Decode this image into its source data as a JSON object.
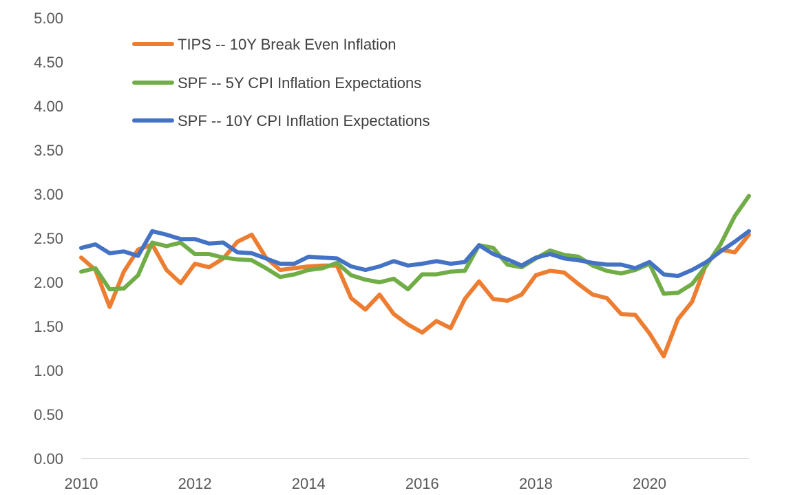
{
  "chart_data": {
    "type": "line",
    "title": "",
    "xlabel": "",
    "ylabel": "",
    "xlim": [
      2010,
      2021.75
    ],
    "ylim": [
      0,
      5
    ],
    "grid": false,
    "legend_position": "top-left",
    "y_ticks": [
      "0.00",
      "0.50",
      "1.00",
      "1.50",
      "2.00",
      "2.50",
      "3.00",
      "3.50",
      "4.00",
      "4.50",
      "5.00"
    ],
    "x_ticks": [
      "2010",
      "2012",
      "2014",
      "2016",
      "2018",
      "2020"
    ],
    "x": [
      2010.0,
      2010.25,
      2010.5,
      2010.75,
      2011.0,
      2011.25,
      2011.5,
      2011.75,
      2012.0,
      2012.25,
      2012.5,
      2012.75,
      2013.0,
      2013.25,
      2013.5,
      2013.75,
      2014.0,
      2014.25,
      2014.5,
      2014.75,
      2015.0,
      2015.25,
      2015.5,
      2015.75,
      2016.0,
      2016.25,
      2016.5,
      2016.75,
      2017.0,
      2017.25,
      2017.5,
      2017.75,
      2018.0,
      2018.25,
      2018.5,
      2018.75,
      2019.0,
      2019.25,
      2019.5,
      2019.75,
      2020.0,
      2020.25,
      2020.5,
      2020.75,
      2021.0,
      2021.25,
      2021.5,
      2021.75
    ],
    "series": [
      {
        "name": "TIPS -- 10Y Break Even Inflation",
        "color": "#ED7D31",
        "values": [
          2.28,
          2.14,
          1.72,
          2.12,
          2.37,
          2.43,
          2.14,
          1.99,
          2.21,
          2.17,
          2.27,
          2.46,
          2.54,
          2.28,
          2.14,
          2.16,
          2.18,
          2.19,
          2.19,
          1.82,
          1.69,
          1.86,
          1.64,
          1.52,
          1.43,
          1.56,
          1.48,
          1.81,
          2.01,
          1.81,
          1.79,
          1.86,
          2.08,
          2.13,
          2.11,
          1.98,
          1.86,
          1.82,
          1.64,
          1.63,
          1.42,
          1.16,
          1.58,
          1.78,
          2.21,
          2.37,
          2.34,
          2.54
        ]
      },
      {
        "name": "SPF -- 5Y CPI Inflation Expectations",
        "color": "#70AD47",
        "values": [
          2.12,
          2.16,
          1.92,
          1.93,
          2.08,
          2.45,
          2.41,
          2.45,
          2.32,
          2.32,
          2.28,
          2.26,
          2.25,
          2.16,
          2.06,
          2.09,
          2.14,
          2.16,
          2.22,
          2.08,
          2.03,
          2.0,
          2.04,
          1.92,
          2.09,
          2.09,
          2.12,
          2.13,
          2.42,
          2.39,
          2.2,
          2.17,
          2.27,
          2.36,
          2.31,
          2.29,
          2.19,
          2.13,
          2.1,
          2.14,
          2.21,
          1.87,
          1.88,
          1.98,
          2.19,
          2.43,
          2.75,
          2.98
        ]
      },
      {
        "name": "SPF -- 10Y CPI Inflation Expectations",
        "color": "#4472C4",
        "values": [
          2.39,
          2.43,
          2.33,
          2.35,
          2.3,
          2.58,
          2.54,
          2.49,
          2.49,
          2.44,
          2.45,
          2.34,
          2.33,
          2.27,
          2.21,
          2.21,
          2.29,
          2.28,
          2.27,
          2.18,
          2.14,
          2.18,
          2.24,
          2.19,
          2.21,
          2.24,
          2.21,
          2.23,
          2.42,
          2.32,
          2.26,
          2.19,
          2.28,
          2.32,
          2.27,
          2.25,
          2.22,
          2.2,
          2.2,
          2.16,
          2.23,
          2.09,
          2.07,
          2.14,
          2.23,
          2.35,
          2.46,
          2.58
        ]
      }
    ]
  }
}
